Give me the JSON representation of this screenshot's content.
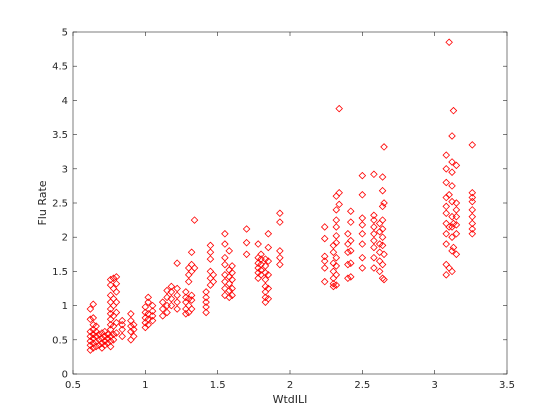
{
  "chart_data": {
    "type": "scatter",
    "title": "",
    "xlabel": "WtdILI",
    "ylabel": "Flu Rate",
    "xlim": [
      0.5,
      3.5
    ],
    "ylim": [
      0,
      5
    ],
    "x_ticks": [
      "0.5",
      "1",
      "1.5",
      "2",
      "2.5",
      "3",
      "3.5"
    ],
    "y_ticks": [
      "0",
      "0.5",
      "1",
      "1.5",
      "2",
      "2.5",
      "3",
      "3.5",
      "4",
      "4.5",
      "5"
    ],
    "grid": false,
    "marker": "diamond",
    "marker_color": "#ff0000",
    "series": [
      {
        "points": [
          [
            0.62,
            0.35
          ],
          [
            0.62,
            0.42
          ],
          [
            0.62,
            0.48
          ],
          [
            0.62,
            0.55
          ],
          [
            0.62,
            0.62
          ],
          [
            0.62,
            0.8
          ],
          [
            0.62,
            0.95
          ],
          [
            0.64,
            0.38
          ],
          [
            0.64,
            0.45
          ],
          [
            0.64,
            0.52
          ],
          [
            0.64,
            0.58
          ],
          [
            0.64,
            0.65
          ],
          [
            0.64,
            0.72
          ],
          [
            0.64,
            0.82
          ],
          [
            0.64,
            1.02
          ],
          [
            0.66,
            0.4
          ],
          [
            0.66,
            0.47
          ],
          [
            0.66,
            0.55
          ],
          [
            0.66,
            0.62
          ],
          [
            0.66,
            0.7
          ],
          [
            0.68,
            0.42
          ],
          [
            0.68,
            0.5
          ],
          [
            0.68,
            0.58
          ],
          [
            0.7,
            0.38
          ],
          [
            0.7,
            0.45
          ],
          [
            0.7,
            0.52
          ],
          [
            0.7,
            0.6
          ],
          [
            0.72,
            0.42
          ],
          [
            0.72,
            0.48
          ],
          [
            0.72,
            0.55
          ],
          [
            0.72,
            0.62
          ],
          [
            0.74,
            0.45
          ],
          [
            0.74,
            0.52
          ],
          [
            0.74,
            0.58
          ],
          [
            0.76,
            0.4
          ],
          [
            0.76,
            0.48
          ],
          [
            0.76,
            0.55
          ],
          [
            0.76,
            0.65
          ],
          [
            0.76,
            0.72
          ],
          [
            0.76,
            0.8
          ],
          [
            0.76,
            0.88
          ],
          [
            0.76,
            0.95
          ],
          [
            0.76,
            1.05
          ],
          [
            0.76,
            1.15
          ],
          [
            0.76,
            1.3
          ],
          [
            0.76,
            1.38
          ],
          [
            0.78,
            0.5
          ],
          [
            0.78,
            0.58
          ],
          [
            0.78,
            0.7
          ],
          [
            0.78,
            0.85
          ],
          [
            0.78,
            1.0
          ],
          [
            0.78,
            1.1
          ],
          [
            0.78,
            1.25
          ],
          [
            0.78,
            1.4
          ],
          [
            0.8,
            0.6
          ],
          [
            0.8,
            0.75
          ],
          [
            0.8,
            0.9
          ],
          [
            0.8,
            1.05
          ],
          [
            0.8,
            1.2
          ],
          [
            0.8,
            1.32
          ],
          [
            0.8,
            1.42
          ],
          [
            0.84,
            0.55
          ],
          [
            0.84,
            0.65
          ],
          [
            0.84,
            0.72
          ],
          [
            0.84,
            0.78
          ],
          [
            0.9,
            0.5
          ],
          [
            0.9,
            0.62
          ],
          [
            0.9,
            0.7
          ],
          [
            0.9,
            0.78
          ],
          [
            0.9,
            0.88
          ],
          [
            0.92,
            0.55
          ],
          [
            0.92,
            0.65
          ],
          [
            0.92,
            0.72
          ],
          [
            1.0,
            0.68
          ],
          [
            1.0,
            0.75
          ],
          [
            1.0,
            0.82
          ],
          [
            1.0,
            0.9
          ],
          [
            1.0,
            0.98
          ],
          [
            1.02,
            0.72
          ],
          [
            1.02,
            0.8
          ],
          [
            1.02,
            0.88
          ],
          [
            1.02,
            1.05
          ],
          [
            1.02,
            1.12
          ],
          [
            1.05,
            0.78
          ],
          [
            1.05,
            0.85
          ],
          [
            1.05,
            0.92
          ],
          [
            1.05,
            1.0
          ],
          [
            1.12,
            0.85
          ],
          [
            1.12,
            0.95
          ],
          [
            1.12,
            1.05
          ],
          [
            1.15,
            0.9
          ],
          [
            1.15,
            1.0
          ],
          [
            1.15,
            1.12
          ],
          [
            1.15,
            1.22
          ],
          [
            1.18,
            1.0
          ],
          [
            1.18,
            1.1
          ],
          [
            1.18,
            1.2
          ],
          [
            1.18,
            1.28
          ],
          [
            1.22,
            0.95
          ],
          [
            1.22,
            1.05
          ],
          [
            1.22,
            1.15
          ],
          [
            1.22,
            1.25
          ],
          [
            1.22,
            1.62
          ],
          [
            1.28,
            0.88
          ],
          [
            1.28,
            0.95
          ],
          [
            1.28,
            1.05
          ],
          [
            1.28,
            1.12
          ],
          [
            1.28,
            1.2
          ],
          [
            1.3,
            0.9
          ],
          [
            1.3,
            1.0
          ],
          [
            1.3,
            1.1
          ],
          [
            1.3,
            1.35
          ],
          [
            1.3,
            1.45
          ],
          [
            1.3,
            1.55
          ],
          [
            1.32,
            0.95
          ],
          [
            1.32,
            1.08
          ],
          [
            1.32,
            1.15
          ],
          [
            1.32,
            1.5
          ],
          [
            1.32,
            1.6
          ],
          [
            1.32,
            1.78
          ],
          [
            1.34,
            2.25
          ],
          [
            1.34,
            1.55
          ],
          [
            1.42,
            0.9
          ],
          [
            1.42,
            0.98
          ],
          [
            1.42,
            1.05
          ],
          [
            1.42,
            1.12
          ],
          [
            1.42,
            1.2
          ],
          [
            1.45,
            1.3
          ],
          [
            1.45,
            1.4
          ],
          [
            1.45,
            1.5
          ],
          [
            1.45,
            1.68
          ],
          [
            1.45,
            1.78
          ],
          [
            1.45,
            1.88
          ],
          [
            1.47,
            1.35
          ],
          [
            1.47,
            1.45
          ],
          [
            1.55,
            1.15
          ],
          [
            1.55,
            1.25
          ],
          [
            1.55,
            1.35
          ],
          [
            1.55,
            1.45
          ],
          [
            1.55,
            1.6
          ],
          [
            1.55,
            1.7
          ],
          [
            1.55,
            1.9
          ],
          [
            1.55,
            2.05
          ],
          [
            1.58,
            1.12
          ],
          [
            1.58,
            1.22
          ],
          [
            1.58,
            1.32
          ],
          [
            1.58,
            1.42
          ],
          [
            1.58,
            1.52
          ],
          [
            1.58,
            1.8
          ],
          [
            1.6,
            1.15
          ],
          [
            1.6,
            1.25
          ],
          [
            1.6,
            1.38
          ],
          [
            1.6,
            1.48
          ],
          [
            1.6,
            1.58
          ],
          [
            1.7,
            1.75
          ],
          [
            1.7,
            1.92
          ],
          [
            1.7,
            2.12
          ],
          [
            1.78,
            1.4
          ],
          [
            1.78,
            1.48
          ],
          [
            1.78,
            1.55
          ],
          [
            1.78,
            1.62
          ],
          [
            1.78,
            1.7
          ],
          [
            1.78,
            1.9
          ],
          [
            1.8,
            1.45
          ],
          [
            1.8,
            1.52
          ],
          [
            1.8,
            1.6
          ],
          [
            1.8,
            1.68
          ],
          [
            1.8,
            1.75
          ],
          [
            1.83,
            1.05
          ],
          [
            1.83,
            1.12
          ],
          [
            1.83,
            1.2
          ],
          [
            1.83,
            1.28
          ],
          [
            1.83,
            1.38
          ],
          [
            1.83,
            1.48
          ],
          [
            1.83,
            1.58
          ],
          [
            1.83,
            1.68
          ],
          [
            1.85,
            1.1
          ],
          [
            1.85,
            1.25
          ],
          [
            1.85,
            1.45
          ],
          [
            1.85,
            1.65
          ],
          [
            1.85,
            1.85
          ],
          [
            1.85,
            2.05
          ],
          [
            1.93,
            1.6
          ],
          [
            1.93,
            1.7
          ],
          [
            1.93,
            1.8
          ],
          [
            1.93,
            2.22
          ],
          [
            1.93,
            2.35
          ],
          [
            2.24,
            1.35
          ],
          [
            2.24,
            1.55
          ],
          [
            2.24,
            1.65
          ],
          [
            2.24,
            1.72
          ],
          [
            2.24,
            1.98
          ],
          [
            2.24,
            2.15
          ],
          [
            2.3,
            1.28
          ],
          [
            2.3,
            1.32
          ],
          [
            2.3,
            1.4
          ],
          [
            2.3,
            1.5
          ],
          [
            2.3,
            1.62
          ],
          [
            2.3,
            1.78
          ],
          [
            2.3,
            1.88
          ],
          [
            2.32,
            1.3
          ],
          [
            2.32,
            1.45
          ],
          [
            2.32,
            1.58
          ],
          [
            2.32,
            1.7
          ],
          [
            2.32,
            1.92
          ],
          [
            2.32,
            2.02
          ],
          [
            2.32,
            2.15
          ],
          [
            2.32,
            2.25
          ],
          [
            2.32,
            2.4
          ],
          [
            2.32,
            2.6
          ],
          [
            2.34,
            3.88
          ],
          [
            2.34,
            2.48
          ],
          [
            2.34,
            2.65
          ],
          [
            2.4,
            1.4
          ],
          [
            2.4,
            1.6
          ],
          [
            2.4,
            1.78
          ],
          [
            2.4,
            1.9
          ],
          [
            2.4,
            2.05
          ],
          [
            2.42,
            1.42
          ],
          [
            2.42,
            1.62
          ],
          [
            2.42,
            1.8
          ],
          [
            2.42,
            1.95
          ],
          [
            2.42,
            2.22
          ],
          [
            2.42,
            2.38
          ],
          [
            2.5,
            1.55
          ],
          [
            2.5,
            1.7
          ],
          [
            2.5,
            1.9
          ],
          [
            2.5,
            2.05
          ],
          [
            2.5,
            2.18
          ],
          [
            2.5,
            2.28
          ],
          [
            2.5,
            2.62
          ],
          [
            2.5,
            2.9
          ],
          [
            2.58,
            1.55
          ],
          [
            2.58,
            1.7
          ],
          [
            2.58,
            1.85
          ],
          [
            2.58,
            1.95
          ],
          [
            2.58,
            2.05
          ],
          [
            2.58,
            2.15
          ],
          [
            2.58,
            2.25
          ],
          [
            2.58,
            2.32
          ],
          [
            2.58,
            2.92
          ],
          [
            2.62,
            1.5
          ],
          [
            2.62,
            1.65
          ],
          [
            2.62,
            1.78
          ],
          [
            2.62,
            1.9
          ],
          [
            2.62,
            2.08
          ],
          [
            2.62,
            2.2
          ],
          [
            2.64,
            1.4
          ],
          [
            2.64,
            1.6
          ],
          [
            2.64,
            1.88
          ],
          [
            2.64,
            2.0
          ],
          [
            2.64,
            2.12
          ],
          [
            2.64,
            2.25
          ],
          [
            2.64,
            2.45
          ],
          [
            2.64,
            2.68
          ],
          [
            2.64,
            2.88
          ],
          [
            2.65,
            3.32
          ],
          [
            2.65,
            2.5
          ],
          [
            2.65,
            1.75
          ],
          [
            2.65,
            1.38
          ],
          [
            3.08,
            1.45
          ],
          [
            3.08,
            1.6
          ],
          [
            3.08,
            1.9
          ],
          [
            3.08,
            2.05
          ],
          [
            3.08,
            2.2
          ],
          [
            3.08,
            2.35
          ],
          [
            3.08,
            2.45
          ],
          [
            3.08,
            2.58
          ],
          [
            3.08,
            2.8
          ],
          [
            3.08,
            3.0
          ],
          [
            3.08,
            3.2
          ],
          [
            3.1,
            4.85
          ],
          [
            3.1,
            1.55
          ],
          [
            3.1,
            2.15
          ],
          [
            3.1,
            2.62
          ],
          [
            3.12,
            1.5
          ],
          [
            3.12,
            1.8
          ],
          [
            3.12,
            2.0
          ],
          [
            3.12,
            2.15
          ],
          [
            3.12,
            2.3
          ],
          [
            3.12,
            2.52
          ],
          [
            3.12,
            2.75
          ],
          [
            3.12,
            2.95
          ],
          [
            3.12,
            3.1
          ],
          [
            3.12,
            3.48
          ],
          [
            3.13,
            3.85
          ],
          [
            3.13,
            2.2
          ],
          [
            3.13,
            1.85
          ],
          [
            3.15,
            1.75
          ],
          [
            3.15,
            2.05
          ],
          [
            3.15,
            2.18
          ],
          [
            3.15,
            2.3
          ],
          [
            3.15,
            2.4
          ],
          [
            3.15,
            2.5
          ],
          [
            3.15,
            3.05
          ],
          [
            3.26,
            2.05
          ],
          [
            3.26,
            2.12
          ],
          [
            3.26,
            2.2
          ],
          [
            3.26,
            2.3
          ],
          [
            3.26,
            2.4
          ],
          [
            3.26,
            2.52
          ],
          [
            3.26,
            2.58
          ],
          [
            3.26,
            2.65
          ],
          [
            3.26,
            3.35
          ]
        ]
      }
    ]
  }
}
